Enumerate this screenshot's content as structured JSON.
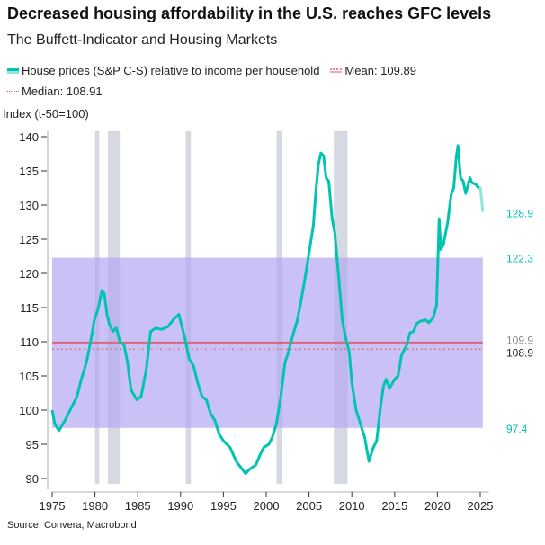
{
  "chart_data": {
    "type": "line",
    "title": "Decreased housing affordability in the U.S. reaches GFC levels",
    "subtitle": "The Buffett-Indicator and Housing Markets",
    "ylabel": "Index (t-50=100)",
    "xlim": [
      1975,
      2026
    ],
    "ylim": [
      89,
      141
    ],
    "x_ticks": [
      1975,
      1980,
      1985,
      1990,
      1995,
      2000,
      2005,
      2010,
      2015,
      2020,
      2025
    ],
    "y_ticks": [
      90,
      95,
      100,
      105,
      110,
      115,
      120,
      125,
      130,
      135,
      140
    ],
    "grid": false,
    "legend_placement": "top-left",
    "colors": {
      "series": "#00c4b0",
      "mean": "#d9667a",
      "median": "#e0505f",
      "band": "#b3a8f2",
      "recession": "#d5d9e2"
    },
    "series": [
      {
        "name": "House prices (S&P C-S) relative to income per household",
        "x": [
          1975.0,
          1975.3,
          1975.8,
          1976.5,
          1977.3,
          1977.9,
          1978.4,
          1979.0,
          1979.5,
          1979.9,
          1980.4,
          1980.8,
          1981.1,
          1981.4,
          1981.7,
          1982.1,
          1982.5,
          1982.9,
          1983.4,
          1983.8,
          1984.2,
          1984.9,
          1985.4,
          1986.0,
          1986.5,
          1987.1,
          1987.8,
          1988.5,
          1989.2,
          1989.8,
          1990.5,
          1991.0,
          1991.5,
          1992.0,
          1992.5,
          1993.0,
          1993.5,
          1994.0,
          1994.5,
          1995.0,
          1995.8,
          1996.5,
          1997.3,
          1997.6,
          1998.0,
          1998.8,
          1999.3,
          1999.7,
          2000.3,
          2000.7,
          2001.2,
          2001.7,
          2002.2,
          2002.6,
          2003.0,
          2003.6,
          2004.0,
          2004.5,
          2005.0,
          2005.5,
          2005.8,
          2006.1,
          2006.4,
          2006.7,
          2007.0,
          2007.3,
          2007.7,
          2008.0,
          2008.5,
          2008.9,
          2009.3,
          2009.7,
          2010.0,
          2010.5,
          2011.0,
          2011.5,
          2012.0,
          2012.5,
          2012.9,
          2013.3,
          2013.7,
          2014.0,
          2014.4,
          2015.0,
          2015.4,
          2015.8,
          2016.4,
          2016.8,
          2017.2,
          2017.6,
          2018.0,
          2018.6,
          2019.0,
          2019.5,
          2019.9,
          2020.2,
          2020.4,
          2020.7,
          2021.2,
          2021.6,
          2021.9,
          2022.2,
          2022.4,
          2022.7,
          2023.0,
          2023.3,
          2023.8,
          2024.0,
          2024.5,
          2024.8,
          2025.0,
          2025.3
        ],
        "y": [
          100,
          98,
          97,
          98.5,
          100.5,
          102,
          104.5,
          107,
          110,
          113,
          115,
          117.5,
          117,
          114,
          112.5,
          111.5,
          112,
          110,
          109.5,
          107,
          103,
          101.5,
          102,
          106,
          111.5,
          112,
          111.8,
          112.2,
          113.3,
          114,
          110.5,
          107.5,
          106.5,
          104,
          102,
          101.5,
          99.5,
          98.5,
          96.5,
          95.5,
          94.5,
          92.5,
          91.2,
          90.7,
          91.3,
          92,
          93.5,
          94.5,
          95,
          96,
          98,
          102,
          107,
          108.5,
          110.5,
          113,
          115.5,
          119,
          123,
          127,
          132,
          136,
          137.6,
          137.2,
          134,
          133.5,
          128,
          126,
          119,
          113,
          110.5,
          108.5,
          104,
          100,
          98,
          96,
          92.5,
          94.5,
          95.5,
          100,
          103.5,
          104.5,
          103.2,
          104.5,
          105,
          108,
          109.5,
          111.3,
          111.5,
          112.7,
          113,
          113.2,
          112.8,
          113.5,
          115.3,
          128,
          123.5,
          124.3,
          127.5,
          131.5,
          132.5,
          137,
          138.7,
          134,
          133.5,
          131.7,
          134,
          133.3,
          133,
          132.5,
          132.7,
          129
        ]
      }
    ],
    "mean": {
      "label": "Mean: 109.89",
      "value": 109.89
    },
    "median": {
      "label": "Median: 108.91",
      "value": 108.91
    },
    "band": {
      "lower": 97.4,
      "upper": 122.3
    },
    "recessions": [
      [
        1980.0,
        1980.5
      ],
      [
        1981.5,
        1982.9
      ],
      [
        1990.6,
        1991.2
      ],
      [
        2001.2,
        2001.9
      ],
      [
        2007.9,
        2009.5
      ]
    ],
    "right_labels": [
      {
        "text": "128.9",
        "value": 128.9,
        "color": "#00c4b0"
      },
      {
        "text": "122.3",
        "value": 122.3,
        "color": "#00c4b0"
      },
      {
        "text": "109.9",
        "value": 109.9,
        "color": "#888888"
      },
      {
        "text": "108.9",
        "value": 108.9,
        "color": "#222222"
      },
      {
        "text": "97.4",
        "value": 97.4,
        "color": "#00c4b0"
      }
    ],
    "source": "Source: Convera, Macrobond"
  }
}
